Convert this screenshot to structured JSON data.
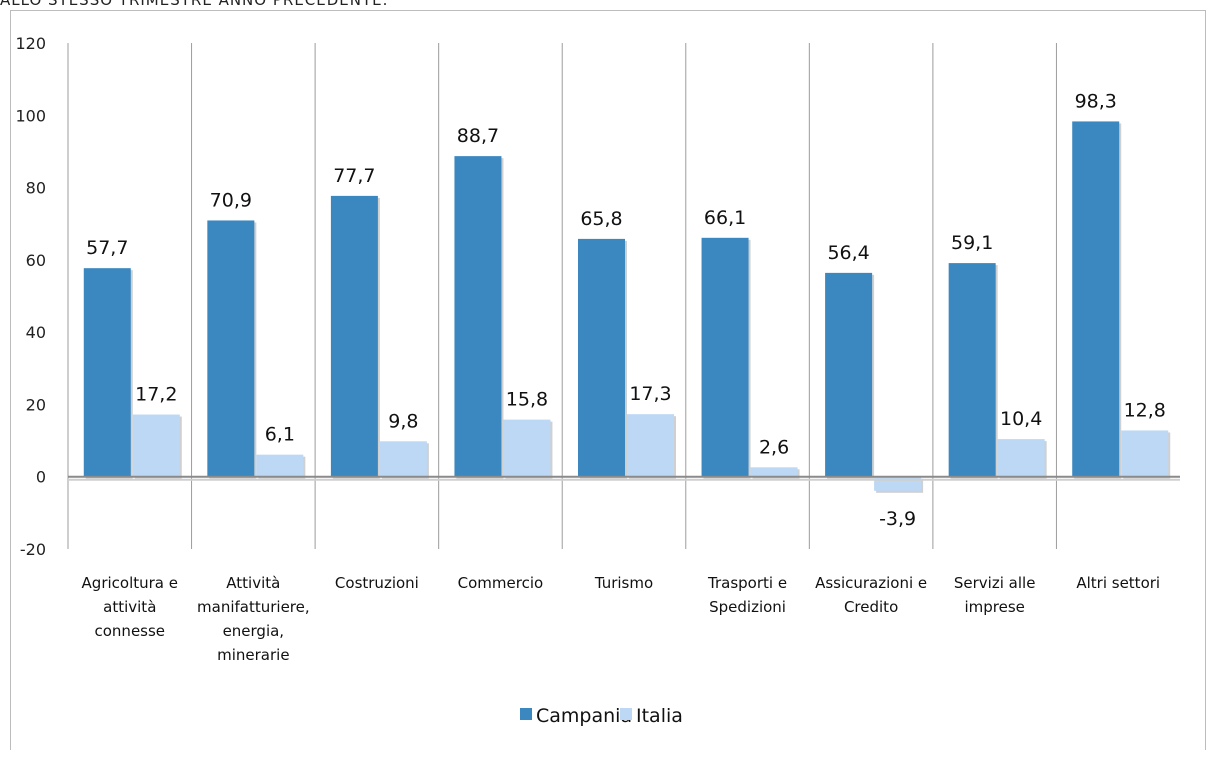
{
  "header_fragment": "ALLO STESSO TRIMESTRE ANNO PRECEDENTE.",
  "colors": {
    "Campania": "#3b87c0",
    "Italia": "#bcd8f5",
    "grid": "#9c9c9c"
  },
  "chart_data": {
    "type": "bar",
    "title": "",
    "xlabel": "",
    "ylabel": "",
    "ylim": [
      -20,
      120
    ],
    "yticks": [
      120,
      100,
      80,
      60,
      40,
      20,
      0,
      -20
    ],
    "grid": "vertical separators between categories",
    "legend": "bottom-center",
    "categories": [
      "Agricoltura e attività connesse",
      "Attività manifatturiere, energia, minerarie",
      "Costruzioni",
      "Commercio",
      "Turismo",
      "Trasporti e Spedizioni",
      "Assicurazioni e Credito",
      "Servizi alle imprese",
      "Altri settori"
    ],
    "category_lines": [
      [
        "Agricoltura e",
        "attività",
        "connesse"
      ],
      [
        "Attività",
        "manifatturiere,",
        "energia,",
        "minerarie"
      ],
      [
        "Costruzioni"
      ],
      [
        "Commercio"
      ],
      [
        "Turismo"
      ],
      [
        "Trasporti e",
        "Spedizioni"
      ],
      [
        "Assicurazioni e",
        "Credito"
      ],
      [
        "Servizi alle",
        "imprese"
      ],
      [
        "Altri settori"
      ]
    ],
    "series": [
      {
        "name": "Campania",
        "values": [
          57.7,
          70.9,
          77.7,
          88.7,
          65.8,
          66.1,
          56.4,
          59.1,
          98.3
        ],
        "labels": [
          "57,7",
          "70,9",
          "77,7",
          "88,7",
          "65,8",
          "66,1",
          "56,4",
          "59,1",
          "98,3"
        ]
      },
      {
        "name": "Italia",
        "values": [
          17.2,
          6.1,
          9.8,
          15.8,
          17.3,
          2.6,
          -3.9,
          10.4,
          12.8
        ],
        "labels": [
          "17,2",
          "6,1",
          "9,8",
          "15,8",
          "17,3",
          "2,6",
          "-3,9",
          "10,4",
          "12,8"
        ]
      }
    ]
  }
}
